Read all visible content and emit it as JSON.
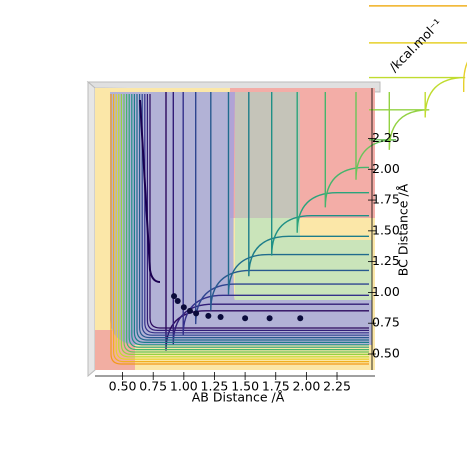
{
  "chart_data": {
    "type": "surface-contour",
    "x_label": "AB Distance /Å",
    "y_label": "BC Distance /Å",
    "z_label": "/kcal.mol⁻¹",
    "xlim": [
      0.275,
      2.56
    ],
    "ylim": [
      0.37,
      2.66
    ],
    "xticks": [
      {
        "value": 0.5,
        "label": "0.50"
      },
      {
        "value": 0.75,
        "label": "0.75"
      },
      {
        "value": 1.0,
        "label": "1.00"
      },
      {
        "value": 1.25,
        "label": "1.25"
      },
      {
        "value": 1.5,
        "label": "1.50"
      },
      {
        "value": 1.75,
        "label": "1.75"
      },
      {
        "value": 2.0,
        "label": "2.00"
      },
      {
        "value": 2.25,
        "label": "2.25"
      }
    ],
    "yticks": [
      {
        "value": 0.5,
        "label": "0.50"
      },
      {
        "value": 0.75,
        "label": "0.75"
      },
      {
        "value": 1.0,
        "label": "1.00"
      },
      {
        "value": 1.25,
        "label": "1.25"
      },
      {
        "value": 1.5,
        "label": "1.50"
      },
      {
        "value": 1.75,
        "label": "1.75"
      },
      {
        "value": 2.0,
        "label": "2.00"
      },
      {
        "value": 2.25,
        "label": "2.25"
      }
    ],
    "trajectory": {
      "color": "#0b0b3b",
      "x": [
        0.92,
        0.95,
        1.0,
        1.05,
        1.1,
        1.2,
        1.3,
        1.5,
        1.7,
        1.95
      ],
      "y": [
        0.97,
        0.93,
        0.88,
        0.85,
        0.83,
        0.81,
        0.8,
        0.79,
        0.79,
        0.79
      ]
    }
  }
}
